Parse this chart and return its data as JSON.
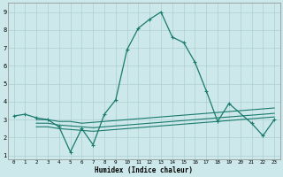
{
  "xlabel": "Humidex (Indice chaleur)",
  "background_color": "#cce8ea",
  "grid_color": "#aecfd2",
  "line_color": "#1a7a6e",
  "xlim": [
    -0.5,
    23.5
  ],
  "ylim": [
    0.8,
    9.5
  ],
  "xticks": [
    0,
    1,
    2,
    3,
    4,
    5,
    6,
    7,
    8,
    9,
    10,
    11,
    12,
    13,
    14,
    15,
    16,
    17,
    18,
    19,
    20,
    21,
    22,
    23
  ],
  "yticks": [
    1,
    2,
    3,
    4,
    5,
    6,
    7,
    8,
    9
  ],
  "series1_x": [
    0,
    1,
    2,
    3,
    4,
    5,
    6,
    7,
    8,
    9,
    10,
    11,
    12,
    13,
    14,
    15,
    16,
    17,
    18,
    19,
    21,
    22,
    23
  ],
  "series1_y": [
    3.2,
    3.3,
    3.1,
    3.0,
    2.6,
    1.2,
    2.5,
    1.6,
    3.3,
    4.1,
    6.9,
    8.1,
    8.6,
    9.0,
    7.6,
    7.3,
    6.2,
    4.6,
    2.9,
    3.9,
    2.8,
    2.1,
    3.0
  ],
  "series2_x": [
    2,
    3,
    4,
    5,
    6,
    7,
    8,
    9,
    10,
    11,
    12,
    13,
    14,
    15,
    16,
    17,
    18,
    19,
    20,
    21,
    22,
    23
  ],
  "series2_y": [
    3.0,
    3.0,
    2.9,
    2.9,
    2.8,
    2.85,
    2.9,
    2.95,
    3.0,
    3.05,
    3.1,
    3.15,
    3.2,
    3.25,
    3.3,
    3.35,
    3.4,
    3.45,
    3.5,
    3.55,
    3.6,
    3.65
  ],
  "series3_x": [
    2,
    3,
    4,
    5,
    6,
    7,
    8,
    9,
    10,
    11,
    12,
    13,
    14,
    15,
    16,
    17,
    18,
    19,
    20,
    21,
    22,
    23
  ],
  "series3_y": [
    2.8,
    2.8,
    2.7,
    2.65,
    2.6,
    2.55,
    2.6,
    2.65,
    2.7,
    2.75,
    2.8,
    2.85,
    2.9,
    2.95,
    3.0,
    3.05,
    3.1,
    3.15,
    3.2,
    3.25,
    3.3,
    3.35
  ],
  "series4_x": [
    2,
    3,
    4,
    5,
    6,
    7,
    8,
    9,
    10,
    11,
    12,
    13,
    14,
    15,
    16,
    17,
    18,
    19,
    20,
    21,
    22,
    23
  ],
  "series4_y": [
    2.6,
    2.6,
    2.5,
    2.45,
    2.4,
    2.35,
    2.4,
    2.45,
    2.5,
    2.55,
    2.6,
    2.65,
    2.7,
    2.75,
    2.8,
    2.85,
    2.9,
    2.95,
    3.0,
    3.05,
    3.1,
    3.15
  ]
}
